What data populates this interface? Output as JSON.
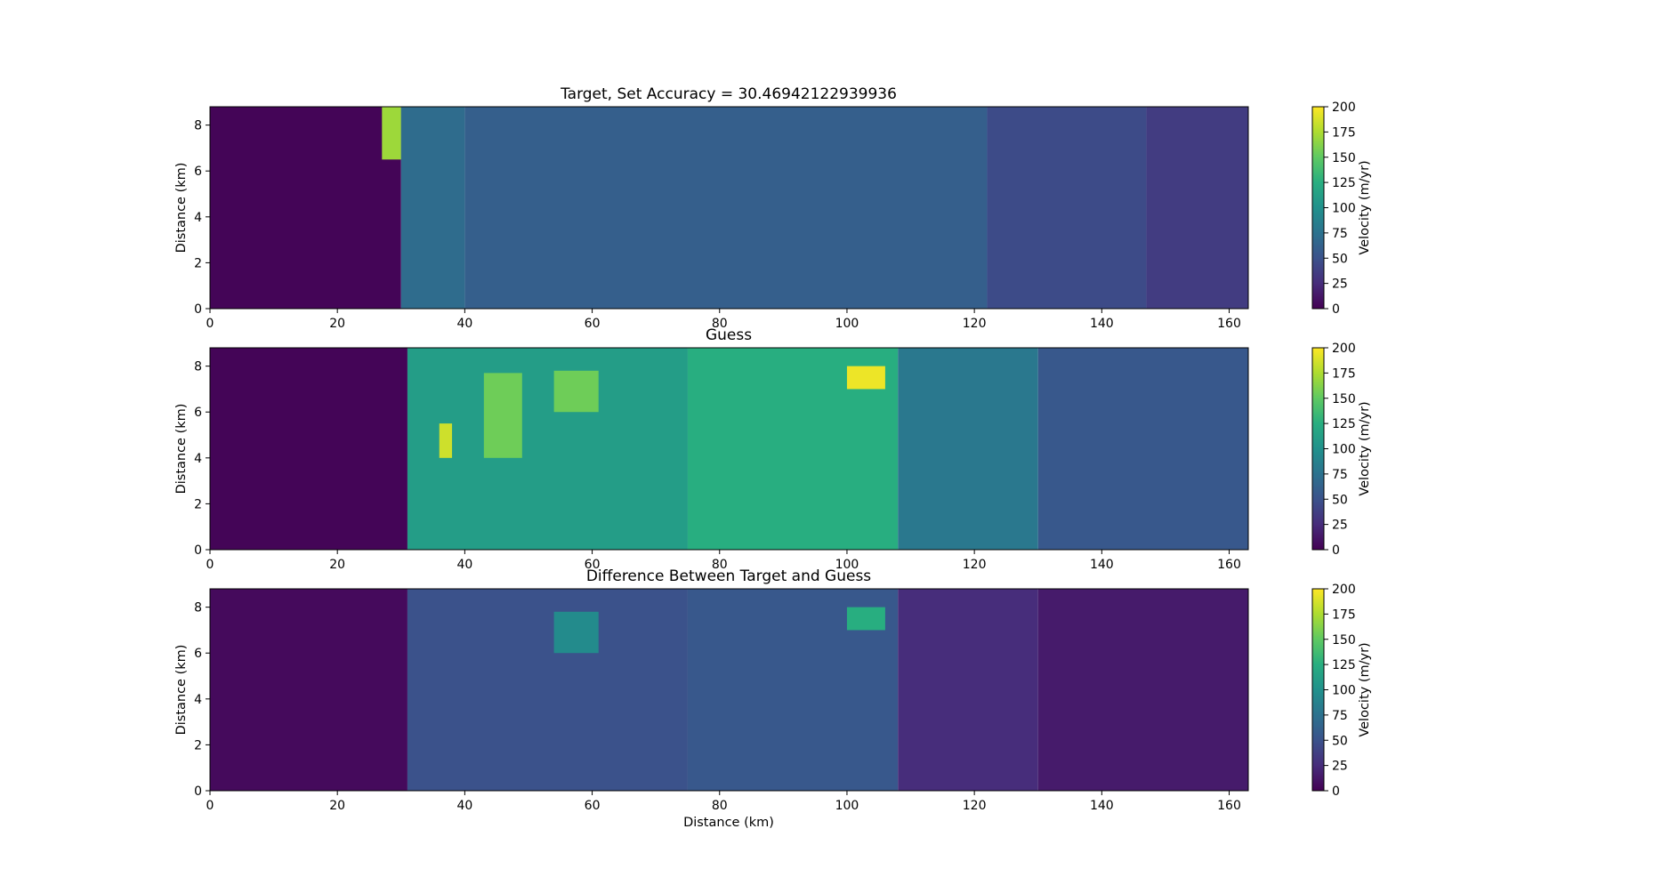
{
  "chart_data": [
    {
      "type": "heatmap",
      "title": "Target, Set Accuracy = 30.46942122939936",
      "xlabel": "",
      "ylabel": "Distance (km)",
      "xlim": [
        0,
        163
      ],
      "ylim": [
        0,
        8.8
      ],
      "x_ticks": [
        "0",
        "20",
        "40",
        "60",
        "80",
        "100",
        "120",
        "140",
        "160"
      ],
      "y_ticks": [
        "0",
        "2",
        "4",
        "6",
        "8"
      ],
      "colormap": "viridis",
      "colorbar": {
        "label": "Velocity (m/yr)",
        "range": [
          0,
          200
        ],
        "ticks": [
          "0",
          "25",
          "50",
          "75",
          "100",
          "125",
          "150",
          "175",
          "200"
        ]
      },
      "regions": [
        {
          "x": [
            0,
            30
          ],
          "value": 2
        },
        {
          "x": [
            27,
            30
          ],
          "y": [
            6.5,
            8.8
          ],
          "value": 170
        },
        {
          "x": [
            30,
            40
          ],
          "value": 70
        },
        {
          "x": [
            40,
            122
          ],
          "value": 60
        },
        {
          "x": [
            122,
            147
          ],
          "value": 45
        },
        {
          "x": [
            147,
            163
          ],
          "value": 35
        }
      ]
    },
    {
      "type": "heatmap",
      "title": "Guess",
      "xlabel": "",
      "ylabel": "Distance (km)",
      "xlim": [
        0,
        163
      ],
      "ylim": [
        0,
        8.8
      ],
      "x_ticks": [
        "0",
        "20",
        "40",
        "60",
        "80",
        "100",
        "120",
        "140",
        "160"
      ],
      "y_ticks": [
        "0",
        "2",
        "4",
        "6",
        "8"
      ],
      "colormap": "viridis",
      "colorbar": {
        "label": "Velocity (m/yr)",
        "range": [
          0,
          200
        ],
        "ticks": [
          "0",
          "25",
          "50",
          "75",
          "100",
          "125",
          "150",
          "175",
          "200"
        ]
      },
      "regions": [
        {
          "x": [
            0,
            31
          ],
          "value": 2
        },
        {
          "x": [
            31,
            75
          ],
          "value": 110
        },
        {
          "x": [
            36,
            38
          ],
          "y": [
            4,
            5.5
          ],
          "value": 185
        },
        {
          "x": [
            43,
            49
          ],
          "y": [
            4,
            7.7
          ],
          "value": 155
        },
        {
          "x": [
            54,
            61
          ],
          "y": [
            6,
            7.8
          ],
          "value": 155
        },
        {
          "x": [
            75,
            108
          ],
          "value": 125
        },
        {
          "x": [
            100,
            106
          ],
          "y": [
            7,
            8
          ],
          "value": 195
        },
        {
          "x": [
            108,
            130
          ],
          "value": 80
        },
        {
          "x": [
            130,
            163
          ],
          "value": 55
        }
      ]
    },
    {
      "type": "heatmap",
      "title": "Difference Between Target and Guess",
      "xlabel": "Distance (km)",
      "ylabel": "Distance (km)",
      "xlim": [
        0,
        163
      ],
      "ylim": [
        0,
        8.8
      ],
      "x_ticks": [
        "0",
        "20",
        "40",
        "60",
        "80",
        "100",
        "120",
        "140",
        "160"
      ],
      "y_ticks": [
        "0",
        "2",
        "4",
        "6",
        "8"
      ],
      "colormap": "viridis",
      "colorbar": {
        "label": "Velocity (m/yr)",
        "range": [
          0,
          200
        ],
        "ticks": [
          "0",
          "25",
          "50",
          "75",
          "100",
          "125",
          "150",
          "175",
          "200"
        ]
      },
      "regions": [
        {
          "x": [
            0,
            31
          ],
          "value": 5
        },
        {
          "x": [
            31,
            75
          ],
          "value": 50
        },
        {
          "x": [
            54,
            61
          ],
          "y": [
            6,
            7.8
          ],
          "value": 95
        },
        {
          "x": [
            75,
            108
          ],
          "value": 55
        },
        {
          "x": [
            100,
            106
          ],
          "y": [
            7,
            8
          ],
          "value": 125
        },
        {
          "x": [
            108,
            130
          ],
          "value": 25
        },
        {
          "x": [
            130,
            163
          ],
          "value": 15
        }
      ]
    }
  ]
}
